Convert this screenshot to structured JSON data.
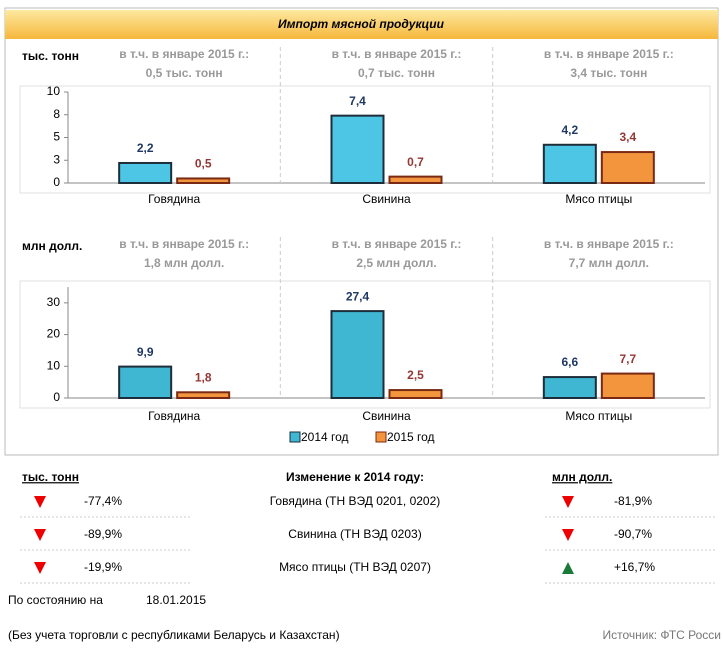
{
  "header": {
    "title": "Импорт мясной продукции"
  },
  "chart_data": [
    {
      "type": "bar",
      "unit": "тыс. тонн",
      "categories": [
        "Говядина",
        "Свинина",
        "Мясо птицы"
      ],
      "annotations": [
        [
          "в т.ч. в январе 2015 г.:",
          "0,5 тыс. тонн"
        ],
        [
          "в т.ч. в январе 2015 г.:",
          "0,7 тыс. тонн"
        ],
        [
          "в т.ч. в январе 2015 г.:",
          "3,4 тыс. тонн"
        ]
      ],
      "series": [
        {
          "name": "2014 год",
          "color": "#4cc6e4",
          "label_color": "#1f3864",
          "values": [
            2.2,
            7.4,
            4.2
          ],
          "value_labels": [
            "2,2",
            "7,4",
            "4,2"
          ]
        },
        {
          "name": "2015 год",
          "color": "#f2953c",
          "label_color": "#953735",
          "values": [
            0.5,
            0.7,
            3.4
          ],
          "value_labels": [
            "0,5",
            "0,7",
            "3,4"
          ]
        }
      ],
      "ylim": [
        0,
        10
      ],
      "yticks": [
        0,
        {
          "value": 2.5,
          "label": "3"
        },
        5,
        {
          "value": 7.5,
          "label": "8"
        },
        10
      ]
    },
    {
      "type": "bar",
      "unit": "млн долл.",
      "categories": [
        "Говядина",
        "Свинина",
        "Мясо птицы"
      ],
      "annotations": [
        [
          "в т.ч. в январе 2015 г.:",
          "1,8 млн долл."
        ],
        [
          "в т.ч. в январе 2015 г.:",
          "2,5 млн долл."
        ],
        [
          "в т.ч. в январе 2015 г.:",
          "7,7 млн долл."
        ]
      ],
      "series": [
        {
          "name": "2014 год",
          "color": "#3fb6d2",
          "label_color": "#1f3864",
          "values": [
            9.9,
            27.4,
            6.6
          ],
          "value_labels": [
            "9,9",
            "27,4",
            "6,6"
          ]
        },
        {
          "name": "2015 год",
          "color": "#f2953c",
          "label_color": "#953735",
          "values": [
            1.8,
            2.5,
            7.7
          ],
          "value_labels": [
            "1,8",
            "2,5",
            "7,7"
          ]
        }
      ],
      "ylim": [
        0,
        35
      ],
      "yticks": [
        0,
        10,
        20,
        30
      ],
      "legend": "bottom"
    }
  ],
  "table": {
    "left_header": "тыс. тонн",
    "center_header": "Изменение к 2014 году:",
    "right_header": "млн долл.",
    "rows": [
      {
        "tons": -77.4,
        "tons_label": "-77,4%",
        "name": "Говядина (ТН ВЭД 0201, 0202)",
        "usd": -81.9,
        "usd_label": "-81,9%"
      },
      {
        "tons": -89.9,
        "tons_label": "-89,9%",
        "name": "Свинина (ТН ВЭД 0203)",
        "usd": -90.7,
        "usd_label": "-90,7%"
      },
      {
        "tons": -19.9,
        "tons_label": "-19,9%",
        "name": "Мясо птицы (ТН ВЭД 0207)",
        "usd": 16.7,
        "usd_label": "+16,7%"
      }
    ]
  },
  "footer": {
    "date_label": "По состоянию на",
    "date": "18.01.2015",
    "note": "(Без учета торговли с республиками Беларусь и Казахстан)",
    "source": "Источник: ФТС Росси"
  }
}
